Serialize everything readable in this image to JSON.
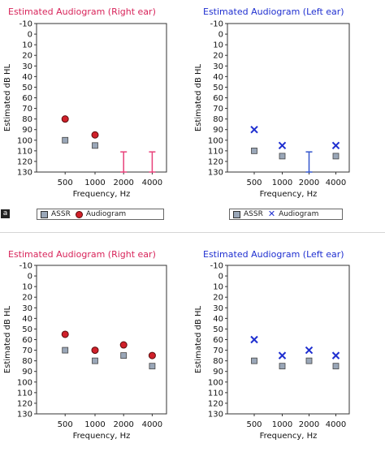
{
  "figure_letter": "a",
  "colors": {
    "right_title": "#d8245a",
    "left_title": "#1f2fd0",
    "right_mark": "#d0202a",
    "left_mark": "#1f2fd0",
    "assr": "#9aa7b8",
    "range": "#e8417a",
    "left_range": "#3355cc"
  },
  "legend_right": {
    "assr": "ASSR",
    "audiogram": "Audiogram"
  },
  "legend_left": {
    "assr": "ASSR",
    "audiogram": "Audiogram"
  },
  "chart_data": [
    {
      "type": "scatter",
      "title": "Estimated Audiogram  (Right ear)",
      "ylabel": "Estimated dB HL",
      "xlabel": "Frequency, Hz",
      "categories": [
        "500",
        "1000",
        "2000",
        "4000"
      ],
      "ylim": [
        -10,
        130
      ],
      "yticks": [
        -10,
        0,
        10,
        20,
        30,
        40,
        50,
        60,
        70,
        80,
        90,
        100,
        110,
        120,
        130
      ],
      "series": [
        {
          "name": "ASSR",
          "values": [
            100,
            105,
            null,
            null
          ]
        },
        {
          "name": "Audiogram",
          "values": [
            80,
            95,
            null,
            null
          ]
        }
      ],
      "ranges": [
        {
          "x": "2000",
          "from": 111,
          "to": 130
        },
        {
          "x": "4000",
          "from": 111,
          "to": 130
        }
      ]
    },
    {
      "type": "scatter",
      "title": "Estimated Audiogram  (Left ear)",
      "ylabel": "Estimated dB HL",
      "xlabel": "Frequency, Hz",
      "categories": [
        "500",
        "1000",
        "2000",
        "4000"
      ],
      "ylim": [
        -10,
        130
      ],
      "yticks": [
        -10,
        0,
        10,
        20,
        30,
        40,
        50,
        60,
        70,
        80,
        90,
        100,
        110,
        120,
        130
      ],
      "series": [
        {
          "name": "ASSR",
          "values": [
            110,
            115,
            null,
            115
          ]
        },
        {
          "name": "Audiogram",
          "values": [
            90,
            105,
            null,
            105
          ]
        }
      ],
      "ranges": [
        {
          "x": "2000",
          "from": 111,
          "to": 130
        }
      ]
    },
    {
      "type": "scatter",
      "title": "Estimated Audiogram  (Right ear)",
      "ylabel": "Estimated dB HL",
      "xlabel": "Frequency, Hz",
      "categories": [
        "500",
        "1000",
        "2000",
        "4000"
      ],
      "ylim": [
        -10,
        130
      ],
      "yticks": [
        -10,
        0,
        10,
        20,
        30,
        40,
        50,
        60,
        70,
        80,
        90,
        100,
        110,
        120,
        130
      ],
      "series": [
        {
          "name": "ASSR",
          "values": [
            70,
            80,
            75,
            85
          ]
        },
        {
          "name": "Audiogram",
          "values": [
            55,
            70,
            65,
            75
          ]
        }
      ],
      "ranges": []
    },
    {
      "type": "scatter",
      "title": "Estimated Audiogram  (Left ear)",
      "ylabel": "Estimated dB HL",
      "xlabel": "Frequency, Hz",
      "categories": [
        "500",
        "1000",
        "2000",
        "4000"
      ],
      "ylim": [
        -10,
        130
      ],
      "yticks": [
        -10,
        0,
        10,
        20,
        30,
        40,
        50,
        60,
        70,
        80,
        90,
        100,
        110,
        120,
        130
      ],
      "series": [
        {
          "name": "ASSR",
          "values": [
            80,
            85,
            80,
            85
          ]
        },
        {
          "name": "Audiogram",
          "values": [
            60,
            75,
            70,
            75
          ]
        }
      ],
      "ranges": []
    }
  ]
}
